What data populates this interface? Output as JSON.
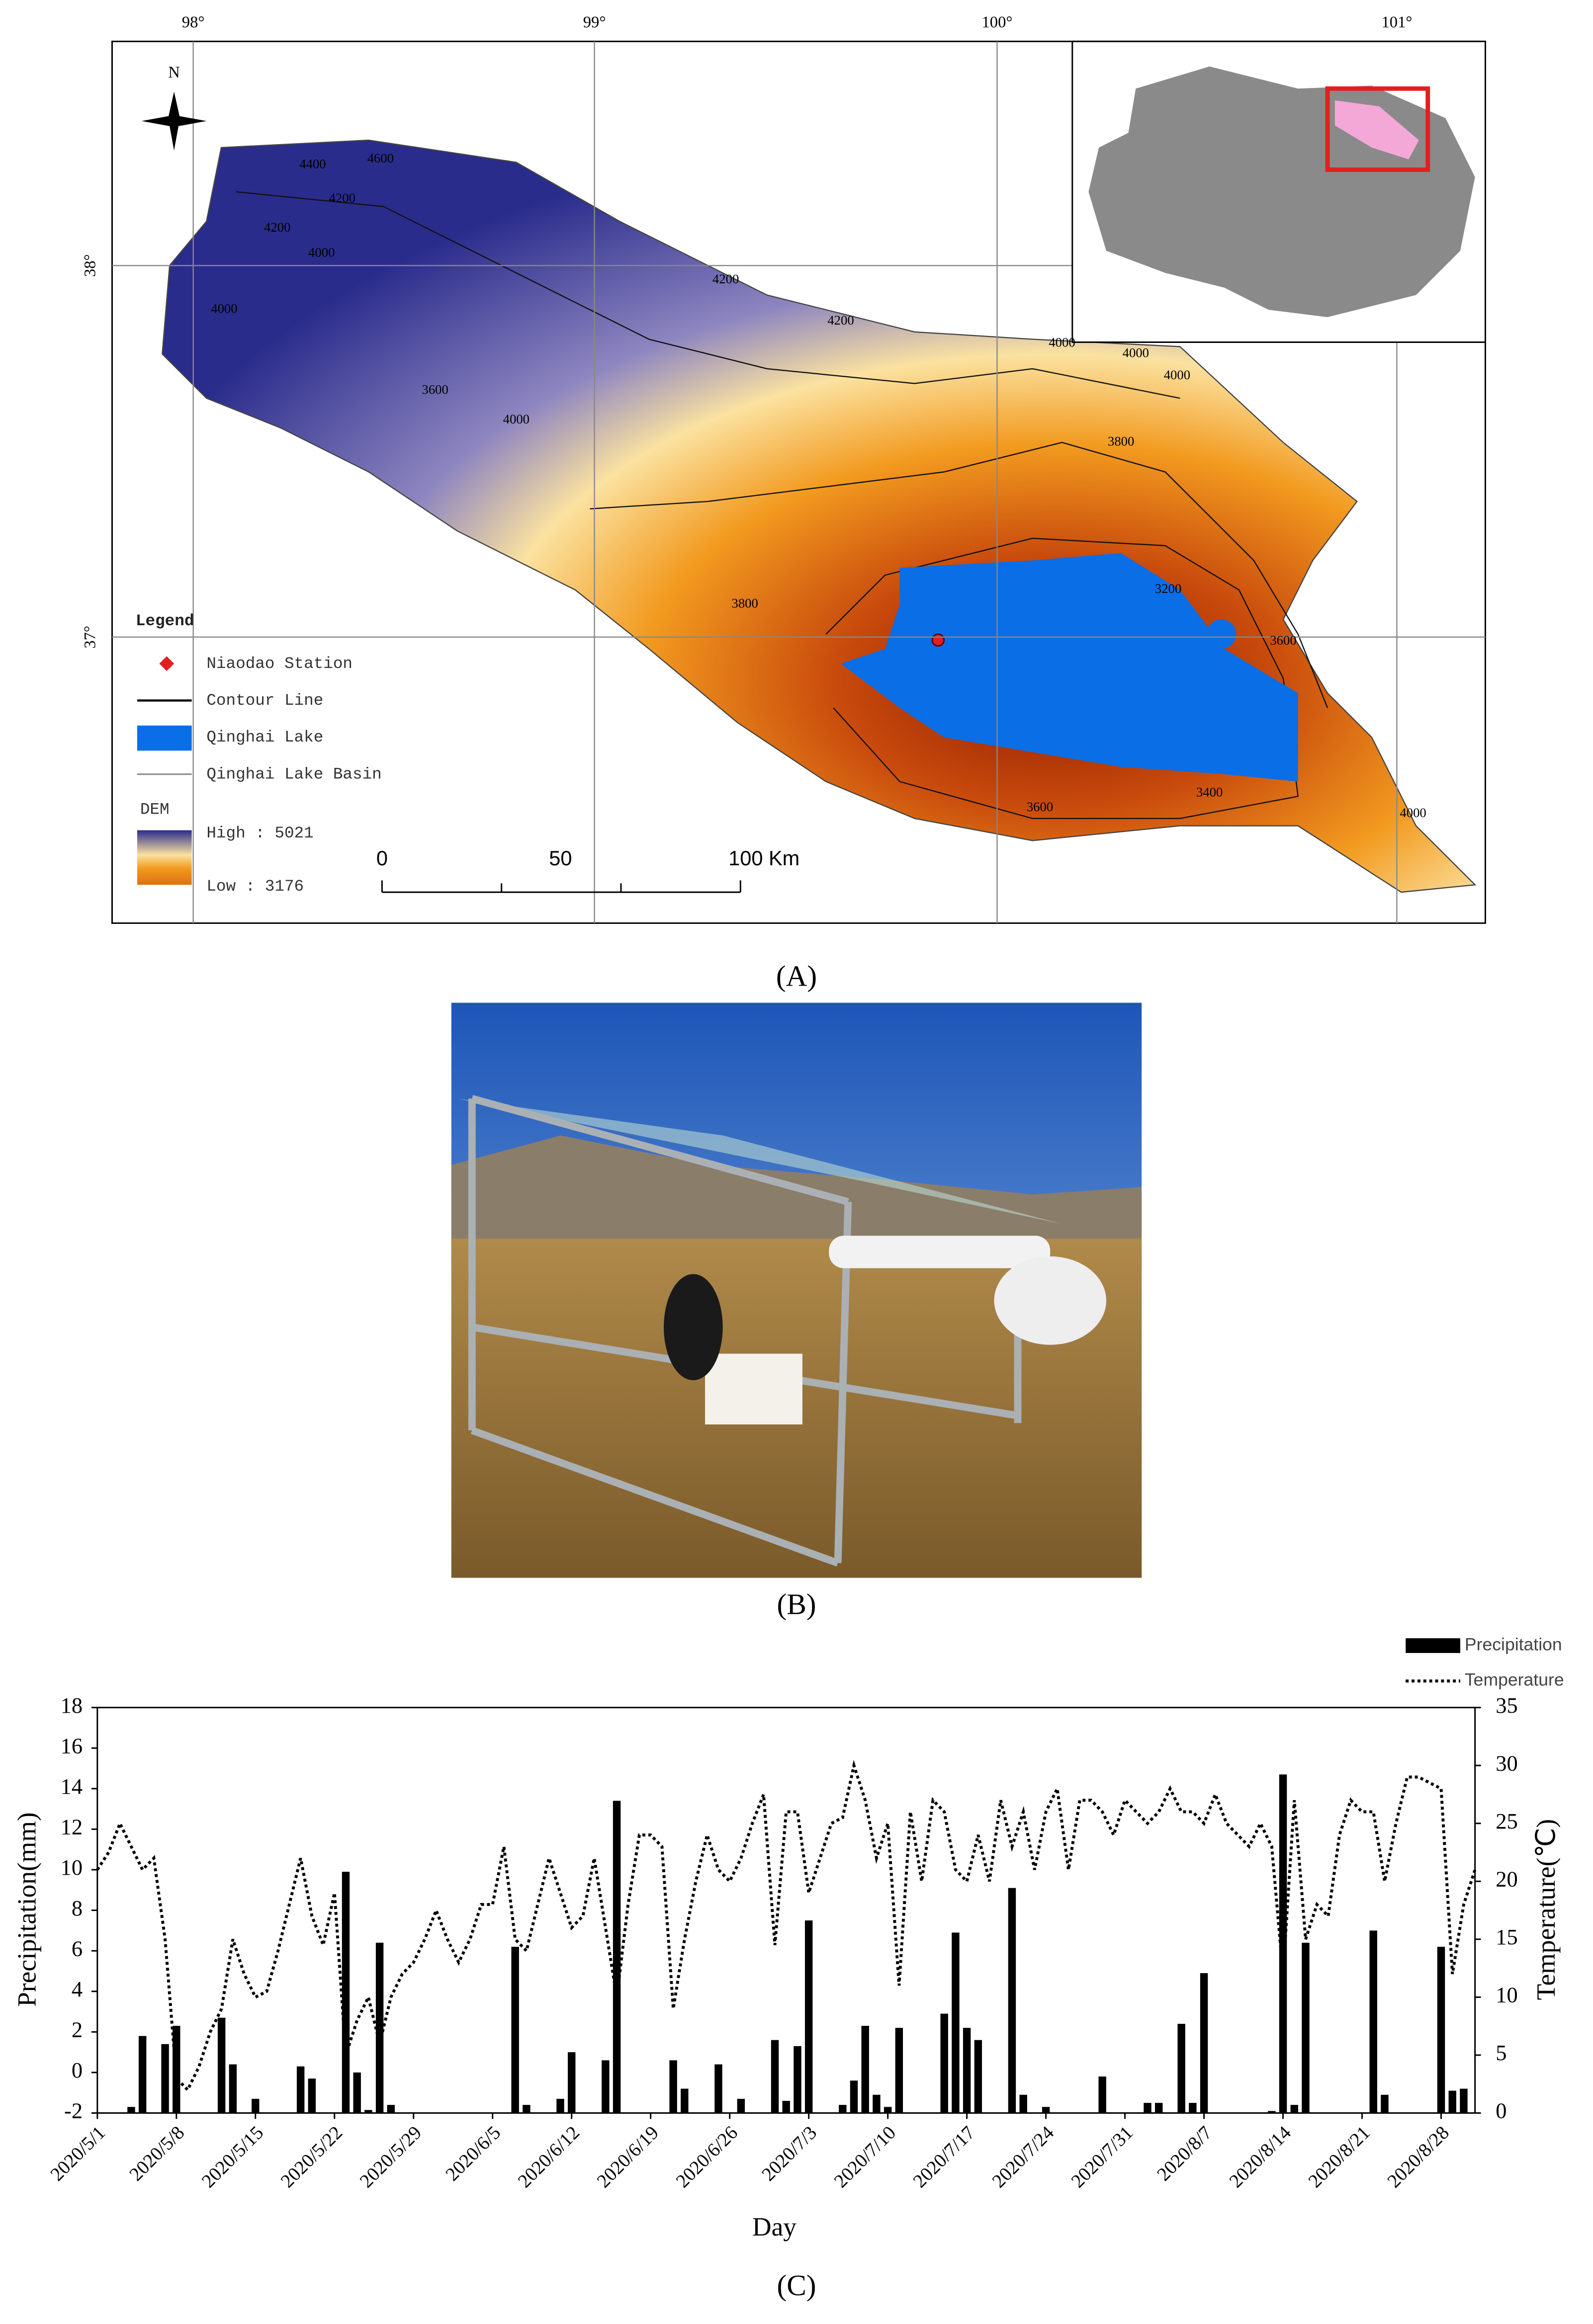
{
  "panels": [
    "(A)",
    "(B)",
    "(C)"
  ],
  "map": {
    "lon_labels": [
      "98°",
      "99°",
      "100°",
      "101°"
    ],
    "lat_labels": [
      "38°",
      "37°"
    ],
    "north": "N",
    "legend": {
      "title": "Legend",
      "items": [
        "Niaodao Station",
        "Contour Line",
        "Qinghai Lake",
        "Qinghai Lake Basin"
      ],
      "dem_title": "DEM",
      "high": "High : 5021",
      "low": "Low : 3176"
    },
    "scale_labels": [
      "0",
      "50",
      "100 Km"
    ],
    "contour_labels": [
      "4400",
      "4600",
      "4200",
      "4200",
      "4000",
      "4000",
      "4200",
      "4200",
      "4000",
      "4000",
      "4000",
      "3800",
      "3600",
      "3200",
      "3400",
      "3600",
      "4000",
      "3800",
      "4000",
      "3600"
    ]
  },
  "chart_data": {
    "type": "bar",
    "x_label": "Day",
    "y_label": "Precipitation(mm)",
    "y2_label": "Temperature(℃)",
    "categories": [
      "2020/5/1",
      null,
      null,
      null,
      null,
      null,
      null,
      "2020/5/8",
      null,
      null,
      null,
      null,
      null,
      null,
      "2020/5/15",
      null,
      null,
      null,
      null,
      null,
      null,
      "2020/5/22",
      null,
      null,
      null,
      null,
      null,
      null,
      "2020/5/29",
      null,
      null,
      null,
      null,
      null,
      null,
      "2020/6/5",
      null,
      null,
      null,
      null,
      null,
      null,
      "2020/6/12",
      null,
      null,
      null,
      null,
      null,
      null,
      "2020/6/19",
      null,
      null,
      null,
      null,
      null,
      null,
      "2020/6/26",
      null,
      null,
      null,
      null,
      null,
      null,
      "2020/7/3",
      null,
      null,
      null,
      null,
      null,
      null,
      "2020/7/10",
      null,
      null,
      null,
      null,
      null,
      null,
      "2020/7/17",
      null,
      null,
      null,
      null,
      null,
      null,
      "2020/7/24",
      null,
      null,
      null,
      null,
      null,
      null,
      "2020/7/31",
      null,
      null,
      null,
      null,
      null,
      null,
      "2020/8/7",
      null,
      null,
      null,
      null,
      null,
      null,
      "2020/8/14",
      null,
      null,
      null,
      null,
      null,
      null,
      "2020/8/21",
      null,
      null,
      null,
      null,
      null,
      null,
      "2020/8/28",
      null,
      null,
      null
    ],
    "series": [
      {
        "name": "Precipitation",
        "type": "bar",
        "color": "#000000",
        "values": [
          null,
          null,
          null,
          -1.7,
          1.8,
          null,
          1.4,
          2.3,
          null,
          null,
          null,
          2.7,
          0.4,
          null,
          -1.3,
          null,
          null,
          null,
          0.3,
          -0.3,
          null,
          null,
          9.9,
          0.0,
          -1.85,
          6.4,
          -1.6,
          null,
          null,
          null,
          null,
          null,
          null,
          null,
          null,
          null,
          null,
          6.2,
          -1.6,
          null,
          null,
          -1.3,
          1.0,
          null,
          null,
          0.6,
          13.4,
          null,
          null,
          null,
          null,
          0.6,
          -0.8,
          null,
          null,
          0.4,
          null,
          -1.3,
          null,
          null,
          1.6,
          -1.4,
          1.3,
          7.5,
          null,
          null,
          -1.6,
          -0.4,
          2.3,
          -1.1,
          -1.7,
          2.2,
          null,
          null,
          null,
          2.9,
          6.9,
          2.2,
          1.6,
          null,
          null,
          9.1,
          -1.1,
          null,
          -1.7,
          null,
          null,
          null,
          null,
          -0.2,
          null,
          null,
          null,
          -1.5,
          -1.5,
          null,
          2.4,
          -1.5,
          4.9,
          null,
          null,
          null,
          null,
          null,
          -1.9,
          14.7,
          -1.6,
          6.4,
          null,
          null,
          null,
          null,
          null,
          7.0,
          -1.1,
          null,
          null,
          null,
          null,
          6.2,
          -0.9,
          -0.8,
          null
        ]
      },
      {
        "name": "Temperature",
        "type": "line",
        "axis": "y2",
        "color": "#000000",
        "dash": "dotted",
        "values": [
          21,
          22.5,
          25,
          23,
          21,
          22,
          15,
          3,
          2,
          4,
          7,
          9,
          15,
          12,
          10,
          10.5,
          14,
          18,
          22,
          17,
          14.5,
          19,
          5,
          8,
          10,
          6,
          10,
          12,
          13,
          15,
          17.5,
          15,
          13,
          15,
          18,
          18,
          23,
          15,
          14,
          18,
          22,
          19,
          16,
          17,
          22,
          16,
          10,
          18,
          24,
          24,
          23,
          9,
          15,
          20,
          24,
          21,
          20,
          22,
          25,
          27.5,
          14.5,
          26,
          26,
          19,
          22,
          25,
          25.5,
          30,
          27,
          22,
          25,
          11,
          26,
          20,
          27,
          26,
          21,
          20,
          24,
          20,
          27,
          23,
          26,
          21,
          26,
          28,
          21,
          27,
          27,
          26,
          24,
          27,
          26,
          25,
          26,
          28,
          26,
          26,
          25,
          27.5,
          25,
          24,
          23,
          25,
          23,
          12,
          27,
          15,
          18,
          17,
          24,
          27,
          26,
          26,
          20,
          25,
          29,
          29,
          28.5,
          28,
          12,
          18,
          21
        ]
      }
    ],
    "ylim": [
      -2,
      18
    ],
    "yticks": [
      -2,
      0,
      2,
      4,
      6,
      8,
      10,
      12,
      14,
      16,
      18
    ],
    "y2lim": [
      0,
      35
    ],
    "y2ticks": [
      0,
      5,
      10,
      15,
      20,
      25,
      30,
      35
    ],
    "legend": "top-right",
    "grid": false
  }
}
